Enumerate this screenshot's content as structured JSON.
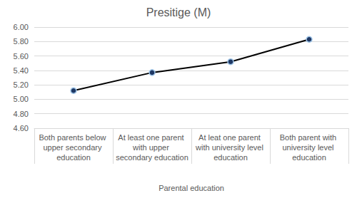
{
  "chart_data": {
    "type": "line",
    "title": "Presitige (M)",
    "x_label": "Parental education",
    "categories": [
      "Both parents below upper secondary education",
      "At least one parent with upper secondary education",
      "At leat one parent with university level education",
      "Both parent with university level education"
    ],
    "values": [
      5.12,
      5.37,
      5.52,
      5.83
    ],
    "color": "#000000",
    "marker": "circle",
    "ylim": [
      4.6,
      6.0
    ],
    "yticks": [
      {
        "value": 4.6,
        "label": "4.60"
      },
      {
        "value": 4.8,
        "label": "4.80"
      },
      {
        "value": 5.0,
        "label": "5.00"
      },
      {
        "value": 5.2,
        "label": "5.20"
      },
      {
        "value": 5.4,
        "label": "5.40"
      },
      {
        "value": 5.6,
        "label": "5.60"
      },
      {
        "value": 5.8,
        "label": "5.80"
      },
      {
        "value": 6.0,
        "label": "6.00"
      }
    ],
    "grid": true
  }
}
